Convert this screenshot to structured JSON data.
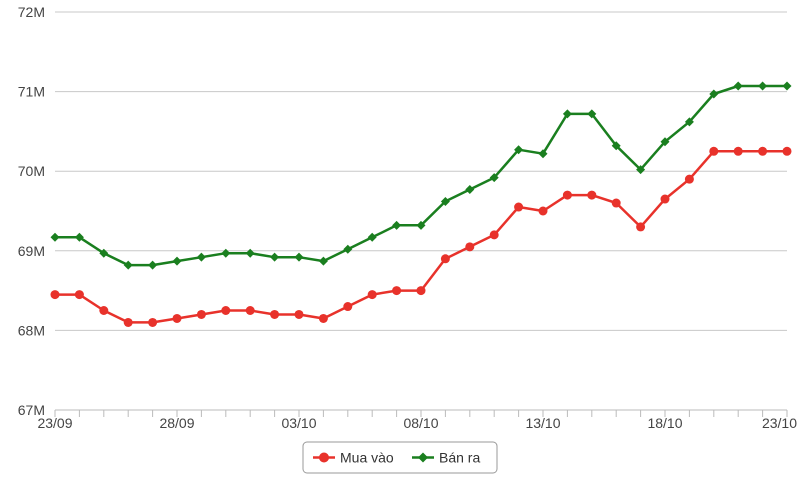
{
  "chart_data": {
    "type": "line",
    "title": "",
    "xlabel": "",
    "ylabel": "",
    "x": [
      "23/09",
      "24/09",
      "25/09",
      "26/09",
      "27/09",
      "28/09",
      "29/09",
      "30/09",
      "01/10",
      "02/10",
      "03/10",
      "04/10",
      "05/10",
      "06/10",
      "07/10",
      "08/10",
      "09/10",
      "10/10",
      "11/10",
      "12/10",
      "13/10",
      "14/10",
      "15/10",
      "16/10",
      "17/10",
      "18/10",
      "19/10",
      "20/10",
      "21/10",
      "22/10",
      "23/10"
    ],
    "x_tick_labels": [
      "23/09",
      "28/09",
      "03/10",
      "08/10",
      "13/10",
      "18/10",
      "23/10"
    ],
    "ylim": [
      67000000,
      72000000
    ],
    "y_ticks": [
      67000000,
      68000000,
      69000000,
      70000000,
      71000000,
      72000000
    ],
    "y_tick_labels": [
      "67M",
      "68M",
      "69M",
      "70M",
      "71M",
      "72M"
    ],
    "grid": true,
    "legend_placement": "bottom-center",
    "series": [
      {
        "name": "Mua vào",
        "color": "#e8322b",
        "marker": "circle",
        "values": [
          68450000,
          68450000,
          68250000,
          68100000,
          68100000,
          68150000,
          68200000,
          68250000,
          68250000,
          68200000,
          68200000,
          68150000,
          68300000,
          68450000,
          68500000,
          68500000,
          68900000,
          69050000,
          69200000,
          69550000,
          69500000,
          69700000,
          69700000,
          69600000,
          69300000,
          69650000,
          69900000,
          70250000,
          70250000,
          70250000,
          70250000
        ]
      },
      {
        "name": "Bán ra",
        "color": "#1a7f1f",
        "marker": "diamond",
        "values": [
          69170000,
          69170000,
          68970000,
          68820000,
          68820000,
          68870000,
          68920000,
          68970000,
          68970000,
          68920000,
          68920000,
          68870000,
          69020000,
          69170000,
          69320000,
          69320000,
          69620000,
          69770000,
          69920000,
          70270000,
          70220000,
          70720000,
          70720000,
          70320000,
          70020000,
          70370000,
          70620000,
          70970000,
          71070000,
          71070000,
          71070000
        ]
      }
    ]
  }
}
